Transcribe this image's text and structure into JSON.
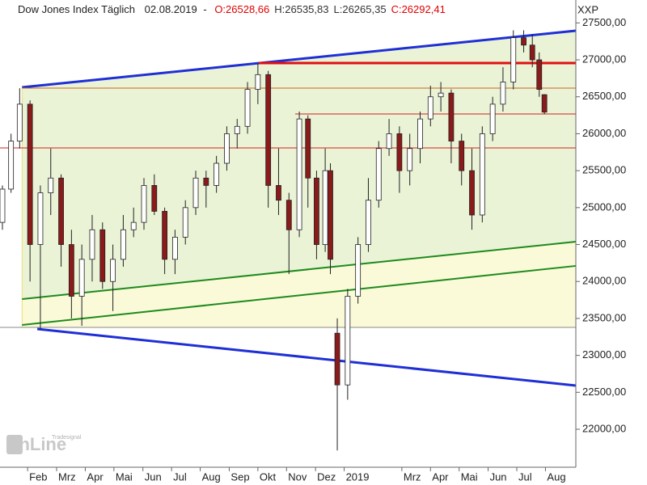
{
  "chart_data": {
    "type": "candlestick",
    "title": "Dow Jones Index Täglich",
    "date": "02.08.2019",
    "separator": "-",
    "ohlc_labels": [
      {
        "text": "O:26528,66",
        "color": "#e00000"
      },
      {
        "text": "H:26535,83",
        "color": "#333333"
      },
      {
        "text": "L:26265,35",
        "color": "#333333"
      },
      {
        "text": "C:26292,41",
        "color": "#e00000"
      }
    ],
    "symbol": "XXP",
    "logo": "onLine",
    "logo_sub": "Tradesignal",
    "up_color": "#ffffff",
    "down_color": "#8b1a1a",
    "xlim": [
      2018.003,
      2019.671
    ],
    "ylim": [
      21486,
      27810
    ],
    "xticks": [
      {
        "value": 2018.083,
        "label": "Feb"
      },
      {
        "value": 2018.167,
        "label": "Mrz"
      },
      {
        "value": 2018.25,
        "label": "Apr"
      },
      {
        "value": 2018.333,
        "label": "Mai"
      },
      {
        "value": 2018.417,
        "label": "Jun"
      },
      {
        "value": 2018.5,
        "label": "Jul"
      },
      {
        "value": 2018.583,
        "label": "Aug"
      },
      {
        "value": 2018.667,
        "label": "Sep"
      },
      {
        "value": 2018.75,
        "label": "Okt"
      },
      {
        "value": 2018.833,
        "label": "Nov"
      },
      {
        "value": 2018.917,
        "label": "Dez"
      },
      2019,
      {
        "value": 2019.167,
        "label": "Mrz"
      },
      {
        "value": 2019.25,
        "label": "Apr"
      },
      {
        "value": 2019.333,
        "label": "Mai"
      },
      {
        "value": 2019.417,
        "label": "Jun"
      },
      {
        "value": 2019.5,
        "label": "Jul"
      },
      {
        "value": 2019.583,
        "label": "Aug"
      }
    ],
    "yticks": [
      {
        "value": 22000,
        "label": "22000,00"
      },
      {
        "value": 22500,
        "label": "22500,00"
      },
      {
        "value": 23000,
        "label": "23000,00"
      },
      {
        "value": 23500,
        "label": "23500,00"
      },
      {
        "value": 24000,
        "label": "24000,00"
      },
      {
        "value": 24500,
        "label": "24500,00"
      },
      {
        "value": 25000,
        "label": "25000,00"
      },
      {
        "value": 25500,
        "label": "25500,00"
      },
      {
        "value": 26000,
        "label": "26000,00"
      },
      {
        "value": 26500,
        "label": "26500,00"
      },
      {
        "value": 27000,
        "label": "27000,00"
      },
      {
        "value": 27500,
        "label": "27500,00"
      }
    ],
    "x": [
      2018.01,
      2018.035,
      2018.06,
      2018.09,
      2018.12,
      2018.15,
      2018.18,
      2018.21,
      2018.24,
      2018.27,
      2018.3,
      2018.33,
      2018.36,
      2018.39,
      2018.42,
      2018.45,
      2018.48,
      2018.51,
      2018.54,
      2018.57,
      2018.6,
      2018.63,
      2018.66,
      2018.69,
      2018.72,
      2018.75,
      2018.78,
      2018.81,
      2018.84,
      2018.87,
      2018.895,
      2018.92,
      2018.945,
      2018.96,
      2018.98,
      2019.01,
      2019.04,
      2019.07,
      2019.1,
      2019.13,
      2019.16,
      2019.19,
      2019.22,
      2019.25,
      2019.28,
      2019.31,
      2019.34,
      2019.37,
      2019.4,
      2019.43,
      2019.46,
      2019.49,
      2019.52,
      2019.545,
      2019.565,
      2019.58
    ],
    "open": [
      24800,
      25250,
      25900,
      26400,
      24500,
      25200,
      25400,
      24500,
      23800,
      24300,
      24700,
      24000,
      24300,
      24700,
      24800,
      25300,
      24950,
      24300,
      24600,
      25000,
      25400,
      25300,
      25600,
      26000,
      26100,
      26600,
      26800,
      25300,
      25100,
      24700,
      26200,
      25400,
      24500,
      25500,
      23300,
      22600,
      23800,
      24500,
      25100,
      25800,
      26000,
      25500,
      25800,
      26200,
      26500,
      26550,
      25900,
      25500,
      24900,
      26000,
      26400,
      26700,
      27300,
      27200,
      27000,
      26528.66
    ],
    "high": [
      25300,
      26000,
      26616,
      26450,
      25300,
      25800,
      25450,
      24700,
      24500,
      24900,
      24800,
      24500,
      24900,
      25000,
      25400,
      25450,
      25000,
      24700,
      25100,
      25500,
      25500,
      25700,
      26100,
      26200,
      26700,
      26951,
      26850,
      25800,
      25200,
      26300,
      26250,
      25500,
      25800,
      25600,
      23500,
      23900,
      24600,
      25400,
      25900,
      26200,
      26100,
      26000,
      26300,
      26650,
      26700,
      26600,
      26000,
      25800,
      26100,
      26500,
      26900,
      27400,
      27400,
      27350,
      27100,
      26535.83
    ],
    "low": [
      24700,
      25200,
      25800,
      24000,
      23360,
      24900,
      24200,
      23500,
      23400,
      24000,
      23900,
      23600,
      24200,
      24600,
      24700,
      24900,
      24100,
      24100,
      24500,
      24900,
      25000,
      25200,
      25500,
      25800,
      26000,
      26400,
      25000,
      24900,
      24100,
      24600,
      25000,
      24300,
      24400,
      24100,
      21713,
      22400,
      23700,
      24400,
      25000,
      25700,
      25200,
      25300,
      25600,
      26100,
      26300,
      25600,
      25300,
      24700,
      24800,
      25900,
      26300,
      26600,
      27100,
      26900,
      26500,
      26265.35
    ],
    "close": [
      25250,
      25900,
      26400,
      24500,
      25200,
      25400,
      24500,
      23800,
      24300,
      24700,
      24000,
      24300,
      24700,
      24800,
      25300,
      24950,
      24300,
      24600,
      25000,
      25400,
      25300,
      25600,
      26000,
      26100,
      26600,
      26800,
      25300,
      25100,
      24700,
      26200,
      25400,
      24500,
      25500,
      24300,
      22600,
      23800,
      24500,
      25100,
      25800,
      26000,
      25500,
      25800,
      26200,
      26500,
      26550,
      25900,
      25500,
      24900,
      26000,
      26400,
      26700,
      27300,
      27200,
      27000,
      26600,
      26292.41
    ],
    "lines": [
      {
        "x": [
          2018.067,
          2019.671
        ],
        "y": [
          26628,
          27394
        ],
        "color": "#1f2fd6",
        "width": 3
      },
      {
        "x": [
          2018.111,
          2019.671
        ],
        "y": [
          23357,
          22591
        ],
        "color": "#1f2fd6",
        "width": 3
      },
      {
        "x": [
          2018.753,
          2019.671
        ],
        "y": [
          26956,
          26956
        ],
        "color": "#e01010",
        "width": 3
      },
      {
        "x": [
          2018.067,
          2019.671
        ],
        "y": [
          26617,
          26617
        ],
        "color": "#c8641e",
        "width": 1
      },
      {
        "x": [
          2018.858,
          2019.671
        ],
        "y": [
          26267,
          26267
        ],
        "color": "#d02020",
        "width": 1
      },
      {
        "x": [
          2018.003,
          2019.671
        ],
        "y": [
          25808,
          25808
        ],
        "color": "#d02020",
        "width": 1
      },
      {
        "x": [
          2018.067,
          2019.671
        ],
        "y": [
          23762,
          24539
        ],
        "color": "#1e8a1e",
        "width": 2
      },
      {
        "x": [
          2018.067,
          2019.671
        ],
        "y": [
          23412,
          24211
        ],
        "color": "#1e8a1e",
        "width": 2
      },
      {
        "x": [
          2018.003,
          2019.671
        ],
        "y": [
          23379,
          23379
        ],
        "color": "#888888",
        "width": 1
      }
    ]
  }
}
